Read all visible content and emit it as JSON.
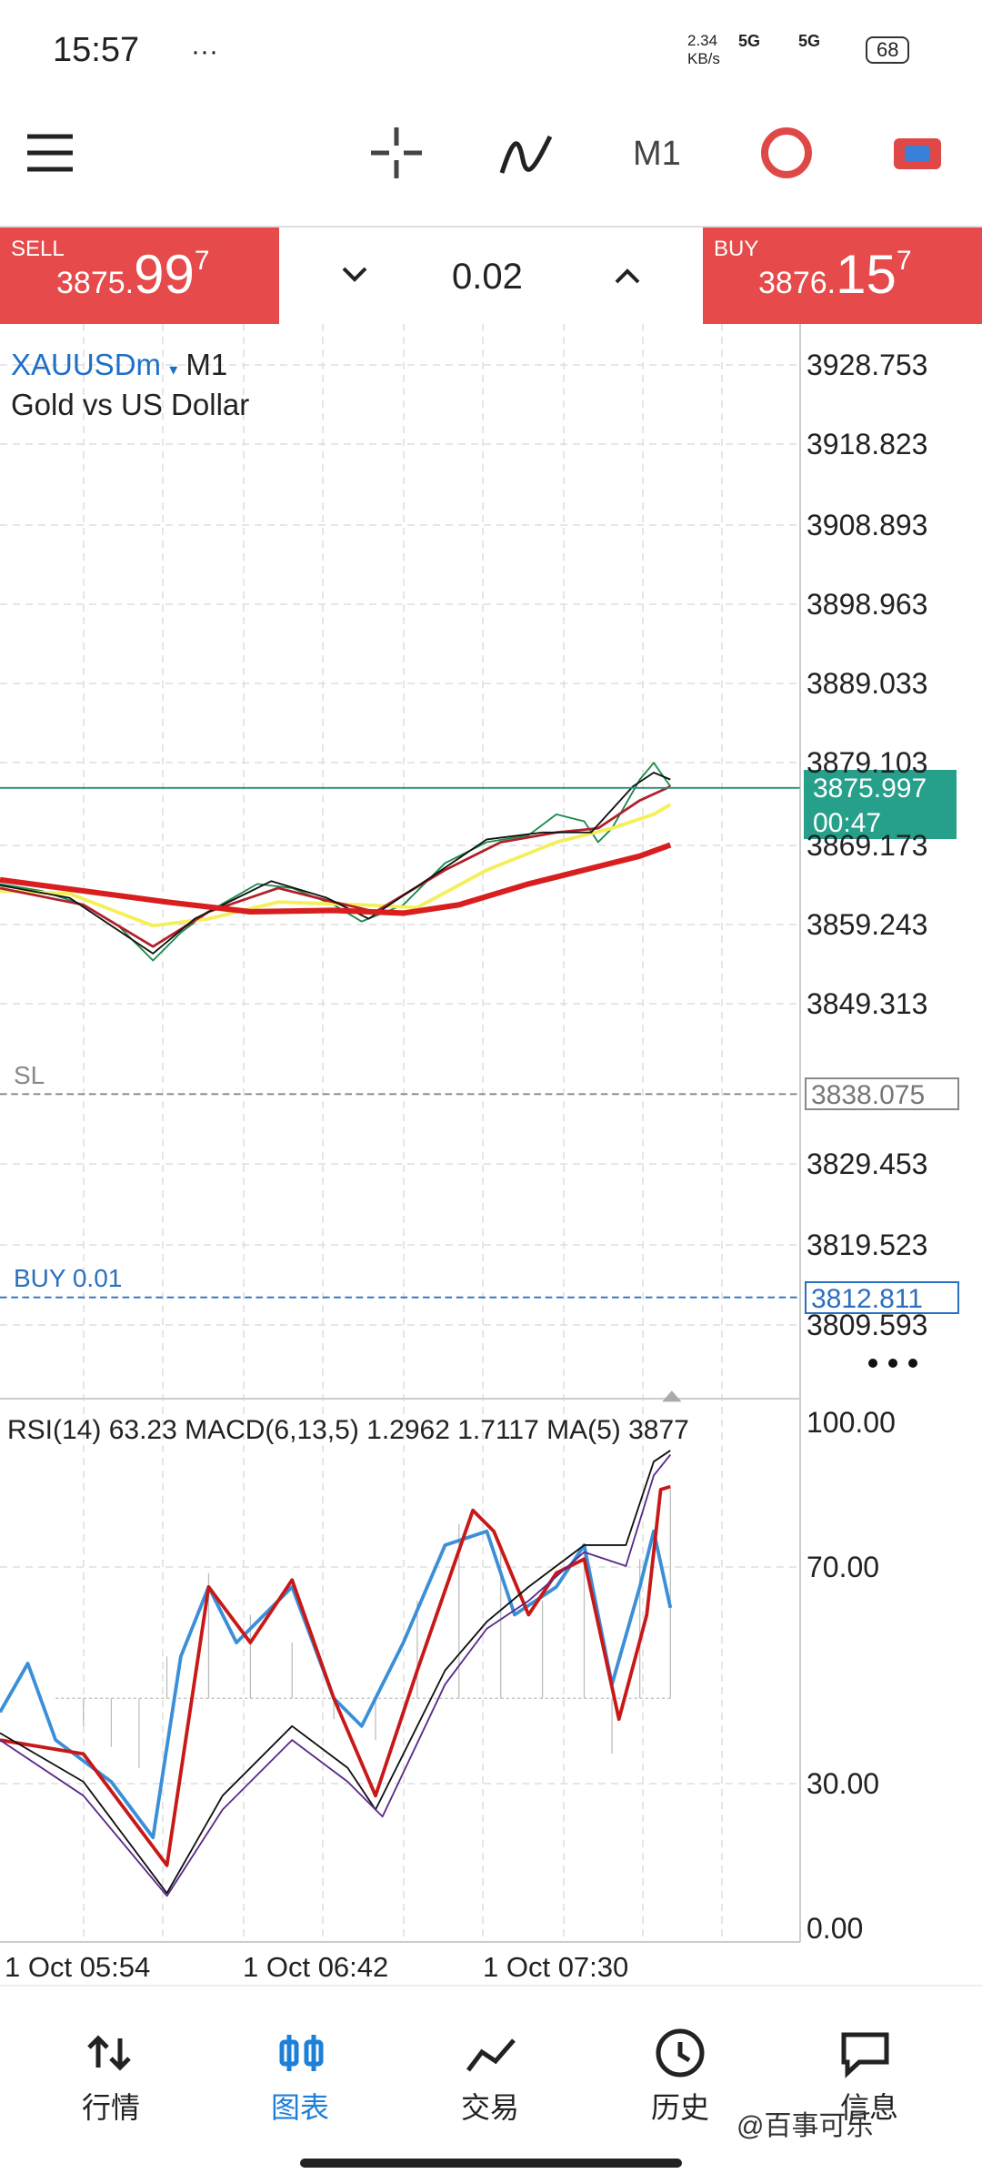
{
  "status_bar": {
    "time": "15:57",
    "speed": "2.34",
    "speed_unit": "KB/s",
    "network_1": "5G",
    "network_2": "5G",
    "battery": "68"
  },
  "toolbar": {
    "timeframe": "M1"
  },
  "trade_bar": {
    "sell": {
      "label": "SELL",
      "price_main": "3875.",
      "price_big": "99",
      "price_sup": "7"
    },
    "volume": "0.02",
    "buy": {
      "label": "BUY",
      "price_main": "3876.",
      "price_big": "15",
      "price_sup": "7"
    }
  },
  "chart": {
    "symbol": "XAUUSDm",
    "timeframe": "M1",
    "description": "Gold vs US Dollar",
    "price_axis": [
      "3928.753",
      "3918.823",
      "3908.893",
      "3898.963",
      "3889.033",
      "3879.103",
      "3869.173",
      "3859.243",
      "3849.313",
      "3829.453",
      "3819.523",
      "3809.593"
    ],
    "current_price": "3875.997",
    "countdown": "00:47",
    "sl_label": "SL",
    "sl_price": "3838.075",
    "order_label": "BUY 0.01",
    "order_price": "3812.811",
    "indicator_legend": "RSI(14) 63.23 MACD(6,13,5) 1.2962 1.7117 MA(5) 3877",
    "indicator_axis": [
      "100.00",
      "70.00",
      "30.00",
      "0.00"
    ],
    "time_axis": [
      "1 Oct 05:54",
      "1 Oct 06:42",
      "1 Oct 07:30"
    ]
  },
  "nav": [
    {
      "label": "行情"
    },
    {
      "label": "图表"
    },
    {
      "label": "交易"
    },
    {
      "label": "历史"
    },
    {
      "label": "信息"
    }
  ],
  "watermark": "@百事可乐"
}
